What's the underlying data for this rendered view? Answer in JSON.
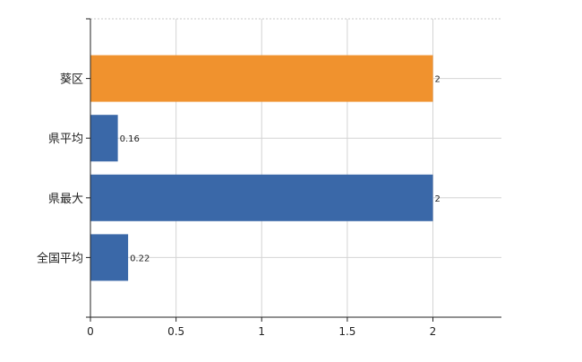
{
  "chart_data": {
    "type": "bar",
    "orientation": "horizontal",
    "categories": [
      "葵区",
      "県平均",
      "県最大",
      "全国平均"
    ],
    "values": [
      2,
      0.16,
      2,
      0.22
    ],
    "value_labels": [
      "2",
      "0.16",
      "2",
      "0.22"
    ],
    "bar_colors": [
      "#f0922e",
      "#3a68a8",
      "#3a68a8",
      "#3a68a8"
    ],
    "xlim": [
      0,
      2.4
    ],
    "xticks": [
      0,
      0.5,
      1,
      1.5,
      2
    ],
    "xtick_labels": [
      "0",
      "0.5",
      "1",
      "1.5",
      "2"
    ],
    "grid": true,
    "title": "",
    "xlabel": "",
    "ylabel": ""
  }
}
